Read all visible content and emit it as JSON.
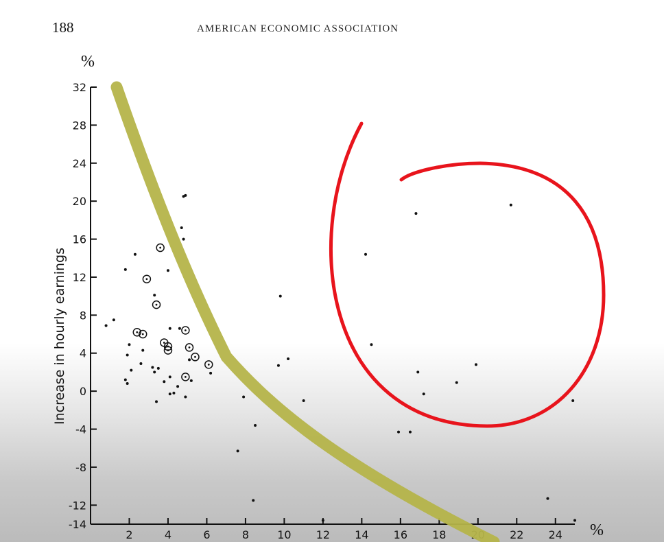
{
  "header": {
    "page_number": "188",
    "running_title": "AMERICAN ECONOMIC ASSOCIATION"
  },
  "colors": {
    "ink": "#111111",
    "green_curve": "#b5b44a",
    "red_spiral": "#e8141c"
  },
  "chart_data": {
    "type": "scatter",
    "ylabel": "Increase in hourly earnings",
    "y_unit_label": "%",
    "x_unit_label": "%",
    "xlim": [
      0,
      25
    ],
    "ylim": [
      -14,
      32
    ],
    "x_ticks": [
      2,
      4,
      6,
      8,
      10,
      12,
      14,
      16,
      18,
      20,
      22,
      24
    ],
    "x_tick_labels": [
      "2",
      "4",
      "6",
      "8",
      "10",
      "12",
      "14",
      "16",
      "18",
      "20",
      "22",
      "24"
    ],
    "y_ticks": [
      32,
      28,
      24,
      20,
      16,
      12,
      8,
      4,
      0,
      -4,
      -8,
      -12,
      -14
    ],
    "y_tick_labels": [
      "32",
      "28",
      "24",
      "20",
      "16",
      "12",
      "8",
      "4",
      "0",
      "-4",
      "-8",
      "-12",
      "-14"
    ],
    "series": [
      {
        "marker": "dot",
        "x": [
          0.8,
          1.2,
          1.8,
          1.9,
          2.3,
          2.7,
          3.3,
          3.3,
          3.5,
          4.0,
          4.1,
          4.6,
          4.7,
          4.8,
          4.8,
          4.9,
          1.8,
          1.9,
          2.1,
          2.6,
          3.2,
          3.8,
          4.1,
          4.5,
          2.0,
          4.3,
          5.1,
          5.2,
          6.2,
          3.4,
          4.1,
          4.9,
          7.9,
          8.5,
          7.6,
          8.4,
          9.8,
          9.7,
          10.2,
          11.0,
          12.0,
          14.2,
          14.5,
          16.9,
          17.2,
          16.8,
          18.9,
          19.9,
          21.7,
          15.9,
          16.5,
          24.9,
          23.6,
          25.0
        ],
        "y": [
          6.9,
          7.5,
          12.8,
          3.8,
          14.4,
          4.3,
          10.1,
          2.0,
          2.4,
          12.7,
          6.6,
          6.6,
          17.2,
          16.0,
          20.5,
          20.6,
          1.2,
          0.8,
          2.2,
          2.9,
          2.5,
          1.0,
          1.5,
          0.5,
          4.9,
          -0.2,
          3.3,
          1.1,
          1.9,
          -1.1,
          -0.3,
          -0.6,
          -0.6,
          -3.6,
          -6.3,
          -11.5,
          10.0,
          2.7,
          3.4,
          -1.0,
          -13.6,
          14.4,
          4.9,
          2.0,
          -0.3,
          18.7,
          0.9,
          2.8,
          19.6,
          -4.3,
          -4.3,
          -1.0,
          -11.3,
          -13.6
        ]
      },
      {
        "marker": "circled",
        "x": [
          3.6,
          2.9,
          3.4,
          2.4,
          2.7,
          3.8,
          4.0,
          4.0,
          4.9,
          5.1,
          5.4,
          4.9,
          6.1
        ],
        "y": [
          15.1,
          11.8,
          9.1,
          6.2,
          6.0,
          5.1,
          4.7,
          4.3,
          6.4,
          4.6,
          3.6,
          1.5,
          2.8
        ]
      }
    ],
    "annotations": [
      {
        "type": "hand-drawn-curve",
        "color": "green",
        "description_shape": "downward-sloping curve"
      },
      {
        "type": "hand-drawn-spiral",
        "color": "red"
      }
    ]
  }
}
